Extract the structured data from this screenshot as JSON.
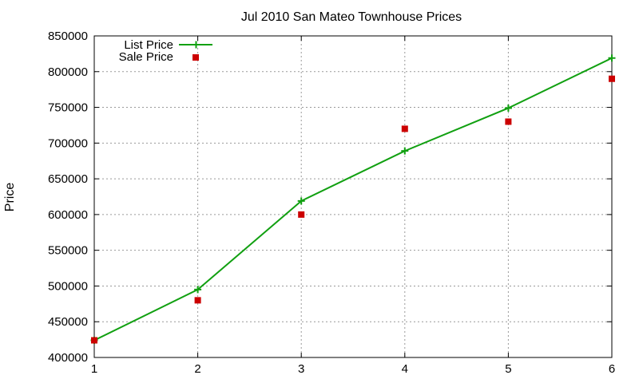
{
  "chart_data": {
    "type": "line",
    "title": "Jul 2010 San Mateo Townhouse Prices",
    "xlabel": "",
    "ylabel": "Price",
    "x": [
      1,
      2,
      3,
      4,
      5,
      6
    ],
    "xlim": [
      1,
      6
    ],
    "ylim": [
      400000,
      850000
    ],
    "xticks": [
      1,
      2,
      3,
      4,
      5,
      6
    ],
    "yticks": [
      400000,
      450000,
      500000,
      550000,
      600000,
      650000,
      700000,
      750000,
      800000,
      850000
    ],
    "grid": true,
    "legend_position": "top-left",
    "series": [
      {
        "name": "List Price",
        "style": "line-with-plus-markers",
        "color": "#11a011",
        "x": [
          1,
          2,
          3,
          4,
          5,
          6
        ],
        "values": [
          424000,
          495000,
          619000,
          689000,
          749000,
          819000
        ]
      },
      {
        "name": "Sale Price",
        "style": "square-markers",
        "color": "#cc0000",
        "x": [
          1,
          2,
          3,
          4,
          5,
          6
        ],
        "values": [
          424000,
          480000,
          600000,
          720000,
          730000,
          790000
        ]
      }
    ]
  }
}
